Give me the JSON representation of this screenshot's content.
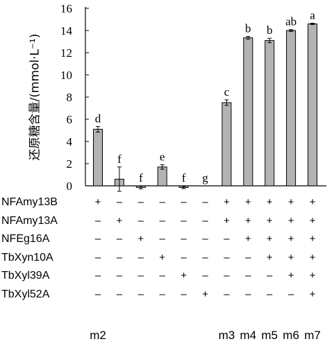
{
  "chart_data": {
    "type": "bar",
    "ylabel": "还原糖含量/(mmol·L⁻¹)",
    "ylim": [
      0,
      16
    ],
    "yticks": [
      0,
      2,
      4,
      6,
      8,
      10,
      12,
      14,
      16
    ],
    "bar_color": "#b3b3b3",
    "series": [
      {
        "values": [
          5.1,
          0.6,
          -0.15,
          1.7,
          -0.15,
          0,
          7.5,
          13.35,
          13.1,
          14.0,
          14.6
        ],
        "errors": [
          0.25,
          1.1,
          0.12,
          0.2,
          0.1,
          0,
          0.25,
          0.12,
          0.2,
          0.08,
          0.06
        ],
        "letters": [
          "d",
          "f",
          "f",
          "e",
          "f",
          "g",
          "c",
          "b",
          "b",
          "ab",
          "a"
        ]
      }
    ]
  },
  "treatments": [
    {
      "name": "NFAmy13B",
      "marks": [
        "+",
        "–",
        "–",
        "–",
        "–",
        "–",
        "+",
        "+",
        "+",
        "+",
        "+"
      ]
    },
    {
      "name": "NFAmy13A",
      "marks": [
        "–",
        "+",
        "–",
        "–",
        "–",
        "–",
        "+",
        "+",
        "+",
        "+",
        "+"
      ]
    },
    {
      "name": "NFEg16A",
      "marks": [
        "–",
        "–",
        "+",
        "–",
        "–",
        "–",
        "–",
        "+",
        "+",
        "+",
        "+"
      ]
    },
    {
      "name": "TbXyn10A",
      "marks": [
        "–",
        "–",
        "–",
        "+",
        "–",
        "–",
        "–",
        "–",
        "+",
        "+",
        "+"
      ]
    },
    {
      "name": "TbXyl39A",
      "marks": [
        "–",
        "–",
        "–",
        "–",
        "+",
        "–",
        "–",
        "–",
        "–",
        "+",
        "+"
      ]
    },
    {
      "name": "TbXyl52A",
      "marks": [
        "–",
        "–",
        "–",
        "–",
        "–",
        "+",
        "–",
        "–",
        "–",
        "–",
        "+"
      ]
    }
  ],
  "mixture_labels": [
    {
      "bar": 0,
      "text": "m2"
    },
    {
      "bar": 6,
      "text": "m3"
    },
    {
      "bar": 7,
      "text": "m4"
    },
    {
      "bar": 8,
      "text": "m5"
    },
    {
      "bar": 9,
      "text": "m6"
    },
    {
      "bar": 10,
      "text": "m7"
    }
  ]
}
